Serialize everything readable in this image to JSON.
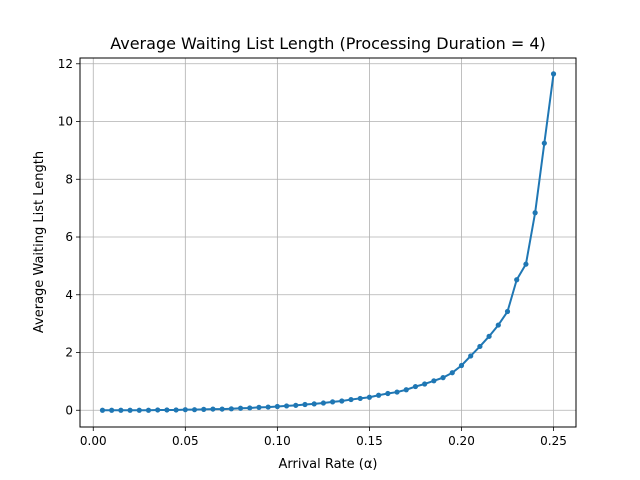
{
  "chart_data": {
    "type": "line",
    "title": "Average Waiting List Length (Processing Duration = 4)",
    "xlabel": "Arrival Rate (α)",
    "ylabel": "Average Waiting List Length",
    "xlim": [
      -0.0072,
      0.2622
    ],
    "ylim": [
      -0.58,
      12.2
    ],
    "x_ticks": [
      0.0,
      0.05,
      0.1,
      0.15,
      0.2,
      0.25
    ],
    "x_tick_labels": [
      "0.00",
      "0.05",
      "0.10",
      "0.15",
      "0.20",
      "0.25"
    ],
    "y_ticks": [
      0,
      2,
      4,
      6,
      8,
      10,
      12
    ],
    "y_tick_labels": [
      "0",
      "2",
      "4",
      "6",
      "8",
      "10",
      "12"
    ],
    "grid": true,
    "color": "#1f77b4",
    "series": [
      {
        "name": "",
        "marker": "circle",
        "x": [
          0.005,
          0.01,
          0.015,
          0.02,
          0.025,
          0.03,
          0.035,
          0.04,
          0.045,
          0.05,
          0.055,
          0.06,
          0.065,
          0.07,
          0.075,
          0.08,
          0.085,
          0.09,
          0.095,
          0.1,
          0.105,
          0.11,
          0.115,
          0.12,
          0.125,
          0.13,
          0.135,
          0.14,
          0.145,
          0.15,
          0.155,
          0.16,
          0.165,
          0.17,
          0.175,
          0.18,
          0.185,
          0.19,
          0.195,
          0.2,
          0.205,
          0.21,
          0.215,
          0.22,
          0.225,
          0.23,
          0.235,
          0.24,
          0.245,
          0.25
        ],
        "y": [
          0.0,
          0.0,
          0.0,
          0.0,
          0.0,
          0.0,
          0.01,
          0.01,
          0.01,
          0.02,
          0.02,
          0.03,
          0.04,
          0.04,
          0.05,
          0.07,
          0.08,
          0.1,
          0.11,
          0.13,
          0.15,
          0.17,
          0.2,
          0.22,
          0.25,
          0.29,
          0.32,
          0.37,
          0.41,
          0.45,
          0.52,
          0.58,
          0.63,
          0.71,
          0.82,
          0.91,
          1.02,
          1.13,
          1.3,
          1.55,
          1.88,
          2.21,
          2.56,
          2.95,
          3.42,
          4.52,
          5.06,
          6.84,
          9.25,
          11.65
        ]
      }
    ]
  }
}
